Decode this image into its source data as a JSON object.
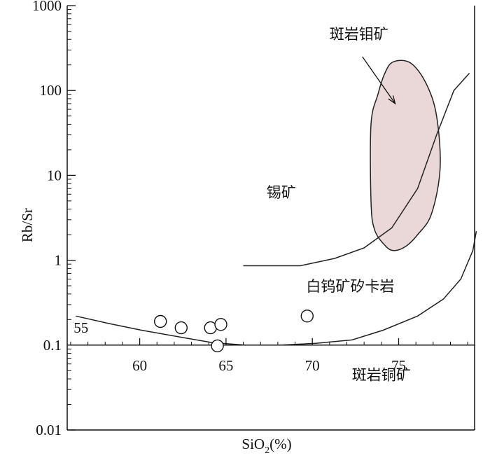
{
  "chart_data": {
    "type": "scatter",
    "xlabel": "SiO₂(%)",
    "xlabel_parts": [
      "SiO",
      "2",
      "(%)"
    ],
    "ylabel": "Rb/Sr",
    "x_ticks": [
      60,
      65,
      70,
      75
    ],
    "y_ticks": [
      {
        "value": 1000,
        "label": "1000"
      },
      {
        "value": 100,
        "label": "100"
      },
      {
        "value": 10,
        "label": "10"
      },
      {
        "value": 1,
        "label": "1"
      },
      {
        "value": 0.1,
        "label": "0.1"
      },
      {
        "value": 0.01,
        "label": "0.01"
      }
    ],
    "y_scale": "log",
    "xlim": [
      55.8,
      79.4
    ],
    "ylim": [
      0.01,
      1000
    ],
    "points": [
      {
        "x": 61.2,
        "y": 0.19
      },
      {
        "x": 62.4,
        "y": 0.16
      },
      {
        "x": 64.1,
        "y": 0.16
      },
      {
        "x": 64.7,
        "y": 0.175
      },
      {
        "x": 64.5,
        "y": 0.098
      },
      {
        "x": 69.7,
        "y": 0.22
      }
    ],
    "boundaries": [
      {
        "id": "tin-boundary",
        "points": [
          [
            66,
            0.86
          ],
          [
            69.3,
            0.86
          ],
          [
            71.3,
            1.05
          ],
          [
            73,
            1.4
          ],
          [
            74.6,
            2.4
          ],
          [
            76.1,
            7
          ],
          [
            77.2,
            30
          ],
          [
            78.2,
            100
          ],
          [
            79.1,
            160
          ]
        ]
      },
      {
        "id": "tungsten-boundary",
        "points": [
          [
            56.3,
            0.22
          ],
          [
            58.2,
            0.18
          ],
          [
            60.1,
            0.15
          ],
          [
            62.3,
            0.125
          ],
          [
            64.2,
            0.107
          ],
          [
            66.1,
            0.1
          ],
          [
            68.2,
            0.1
          ],
          [
            70.2,
            0.105
          ],
          [
            72.3,
            0.115
          ],
          [
            74.1,
            0.15
          ],
          [
            76.1,
            0.22
          ],
          [
            77.6,
            0.35
          ],
          [
            78.6,
            0.6
          ],
          [
            79.3,
            1.3
          ],
          [
            79.5,
            2.2
          ]
        ]
      }
    ],
    "porphyry_mo_field": {
      "color": "#ead7d8",
      "outline": [
        [
          74.7,
          218
        ],
        [
          75.7,
          210
        ],
        [
          76.6,
          120
        ],
        [
          77.2,
          50
        ],
        [
          77.4,
          12
        ],
        [
          76.9,
          3.5
        ],
        [
          76.1,
          2.0
        ],
        [
          75.4,
          1.45
        ],
        [
          74.7,
          1.3
        ],
        [
          74.2,
          1.5
        ],
        [
          73.6,
          2.3
        ],
        [
          73.4,
          5
        ],
        [
          73.4,
          40
        ],
        [
          73.8,
          90
        ],
        [
          74.2,
          160
        ]
      ]
    },
    "annotations": [
      {
        "text": "斑岩钼矿",
        "x": 72.7,
        "y": 400
      },
      {
        "text": "锡矿",
        "x": 68.2,
        "y": 5.5
      },
      {
        "text": "白钨矿矽卡岩",
        "x": 72.2,
        "y": 0.43
      },
      {
        "text": "55",
        "x": 56.6,
        "y": 0.14
      },
      {
        "text": "斑岩铜矿",
        "x": 74,
        "y": 0.039
      }
    ]
  }
}
